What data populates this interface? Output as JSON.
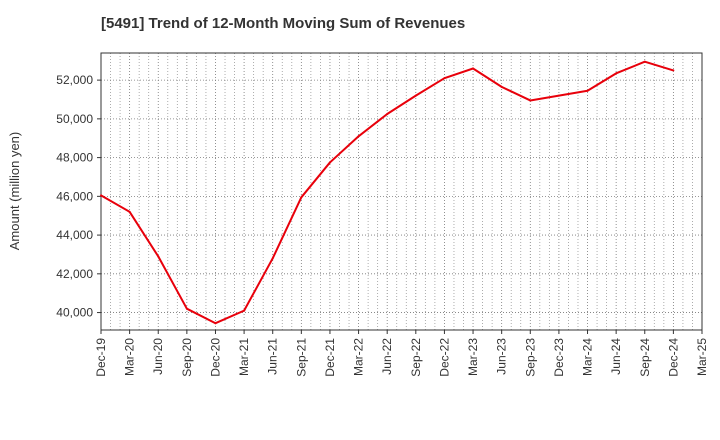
{
  "chart_data": {
    "type": "line",
    "title": "[5491]  Trend of 12-Month Moving Sum of Revenues",
    "xlabel": "",
    "ylabel": "Amount (million yen)",
    "x_ticks": [
      "Dec-19",
      "Mar-20",
      "Jun-20",
      "Sep-20",
      "Dec-20",
      "Mar-21",
      "Jun-21",
      "Sep-21",
      "Dec-21",
      "Mar-22",
      "Jun-22",
      "Sep-22",
      "Dec-22",
      "Mar-23",
      "Jun-23",
      "Sep-23",
      "Dec-23",
      "Mar-24",
      "Jun-24",
      "Sep-24",
      "Dec-24",
      "Mar-25"
    ],
    "y_ticks": [
      "40,000",
      "42,000",
      "44,000",
      "46,000",
      "48,000",
      "50,000",
      "52,000"
    ],
    "ylim": [
      39100,
      53400
    ],
    "grid": true,
    "series": [
      {
        "color": "#e8000b",
        "x": [
          "Dec-19",
          "Mar-20",
          "Jun-20",
          "Sep-20",
          "Dec-20",
          "Mar-21",
          "Jun-21",
          "Sep-21",
          "Dec-21",
          "Mar-22",
          "Jun-22",
          "Sep-22",
          "Dec-22",
          "Mar-23",
          "Jun-23",
          "Sep-23",
          "Dec-23",
          "Mar-24",
          "Jun-24",
          "Sep-24",
          "Dec-24"
        ],
        "values": [
          46050,
          45200,
          42900,
          40200,
          39450,
          40100,
          42800,
          45950,
          47750,
          49100,
          50250,
          51200,
          52100,
          52600,
          51650,
          50950,
          51200,
          51450,
          52350,
          52950,
          52500
        ]
      }
    ]
  }
}
